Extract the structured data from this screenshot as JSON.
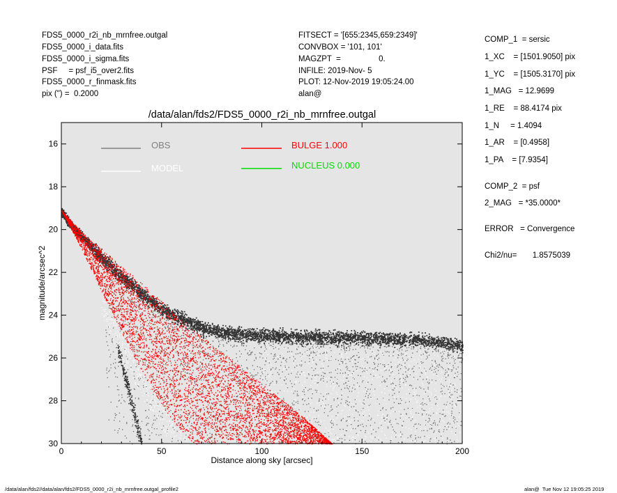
{
  "header_left": [
    "FDS5_0000_r2i_nb_mrnfree.outgal",
    "FDS5_0000_i_data.fits",
    "FDS5_0000_i_sigma.fits",
    "PSF     = psf_i5_over2.fits",
    "FDS5_0000_r_finmask.fits",
    "pix (\") =  0.2000"
  ],
  "header_mid": [
    "FITSECT = '[655:2345,659:2349]'",
    "CONVBOX = '101, 101'",
    "MAGZPT  =                 0.",
    "INFILE: 2019-Nov- 5",
    "PLOT: 12-Nov-2019 19:05:24.00",
    "alan@"
  ],
  "params": [
    "COMP_1  = sersic",
    "1_XC    = [1501.9050] pix",
    "1_YC    = [1505.3170] pix",
    "1_MAG   = 12.9699",
    "1_RE    = 88.4174 pix",
    "1_N     = 1.4094",
    "1_AR    = [0.4958]",
    "1_PA    = [7.9354]",
    "COMP_2  = psf",
    "2_MAG   = *35.0000*",
    "ERROR   = Convergence",
    "Chi2/nu=       1.8575039"
  ],
  "footer_left": "/data/alan/fds2//data/alan/fds2/FDS5_0000_r2i_nb_mrnfree.outgal_profile2",
  "footer_right": "alan@  Tue Nov 12 19:05:25 2019",
  "chart_data": {
    "type": "scatter",
    "title": "/data/alan/fds2/FDS5_0000_r2i_nb_mrnfree.outgal",
    "xlabel": "Distance along sky [arcsec]",
    "ylabel": "magnitude/arcsec^2",
    "xlim": [
      0,
      200
    ],
    "ylim": [
      30,
      15
    ],
    "y_inverted": true,
    "x_ticks": [
      0,
      50,
      100,
      150,
      200
    ],
    "y_ticks": [
      16,
      18,
      20,
      22,
      24,
      26,
      28,
      30
    ],
    "background": "#e5e5e5",
    "legend": [
      {
        "label": "OBS",
        "color": "#808080"
      },
      {
        "label": "MODEL",
        "color": "#ffffff"
      },
      {
        "label": "BULGE  1.000",
        "color": "#ff0000"
      },
      {
        "label": "NUCLEUS  0.000",
        "color": "#00dd00"
      }
    ],
    "series": [
      {
        "name": "OBS",
        "color": "#404040",
        "ridge_x": [
          0,
          5,
          10,
          20,
          30,
          40,
          50,
          60,
          70,
          80,
          100,
          120,
          150,
          180,
          200
        ],
        "ridge_y": [
          19.2,
          19.8,
          20.3,
          21.3,
          22.2,
          23.0,
          23.7,
          24.2,
          24.6,
          24.8,
          24.95,
          25.0,
          25.05,
          25.15,
          25.4
        ]
      },
      {
        "name": "MODEL",
        "color": "#ffffff"
      },
      {
        "name": "BULGE",
        "color": "#ff0000",
        "upper_x": [
          0,
          10,
          20,
          40,
          60,
          80,
          100,
          120,
          135
        ],
        "upper_y": [
          19.1,
          20.1,
          20.9,
          22.5,
          24.2,
          25.7,
          27.2,
          28.7,
          30.0
        ],
        "lower_x": [
          0,
          10,
          20,
          30,
          40,
          50,
          60,
          66
        ],
        "lower_y": [
          19.1,
          20.9,
          22.9,
          24.8,
          26.6,
          28.2,
          29.5,
          30.0
        ]
      }
    ]
  }
}
